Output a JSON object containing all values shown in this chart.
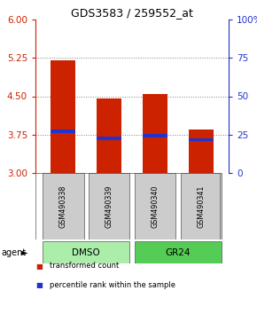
{
  "title": "GDS3583 / 259552_at",
  "samples": [
    "GSM490338",
    "GSM490339",
    "GSM490340",
    "GSM490341"
  ],
  "bar_bottoms": [
    3.0,
    3.0,
    3.0,
    3.0
  ],
  "bar_tops": [
    5.2,
    4.45,
    4.55,
    3.85
  ],
  "bar_color": "#cc2200",
  "percentile_values": [
    3.82,
    3.67,
    3.73,
    3.65
  ],
  "percentile_color": "#2233cc",
  "ylim_left": [
    3.0,
    6.0
  ],
  "yticks_left": [
    3.0,
    3.75,
    4.5,
    5.25,
    6.0
  ],
  "ylim_right": [
    0,
    100
  ],
  "yticks_right": [
    0,
    25,
    50,
    75,
    100
  ],
  "ytick_labels_right": [
    "0",
    "25",
    "50",
    "75",
    "100%"
  ],
  "left_tick_color": "#cc2200",
  "right_tick_color": "#2233cc",
  "groups": [
    {
      "label": "DMSO",
      "indices": [
        0,
        1
      ],
      "color": "#aaeeaa"
    },
    {
      "label": "GR24",
      "indices": [
        2,
        3
      ],
      "color": "#55cc55"
    }
  ],
  "group_row_label": "agent",
  "legend_items": [
    {
      "color": "#cc2200",
      "label": "transformed count"
    },
    {
      "color": "#2233cc",
      "label": "percentile rank within the sample"
    }
  ],
  "bar_width": 0.55,
  "grid_color": "#000000",
  "grid_alpha": 0.5,
  "sample_box_color": "#cccccc",
  "background_color": "#ffffff"
}
